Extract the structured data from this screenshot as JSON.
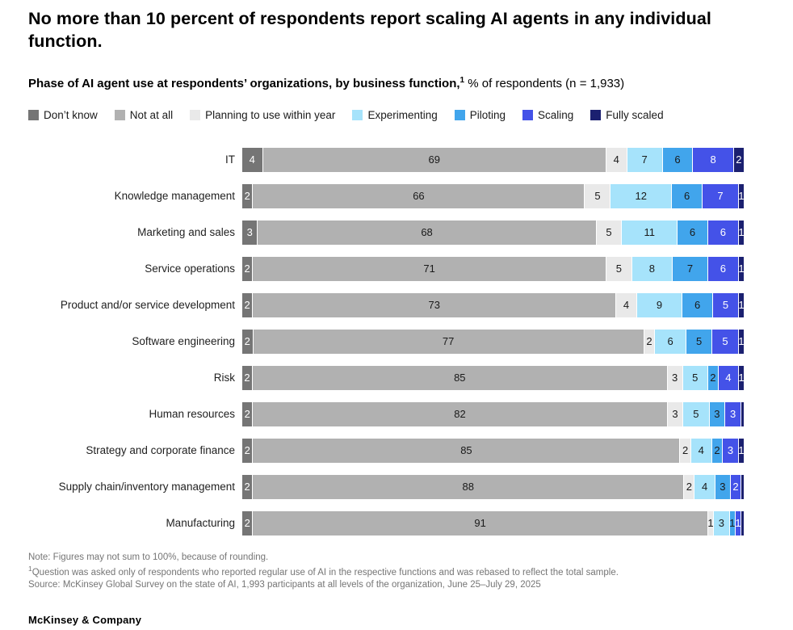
{
  "page": {
    "title": "No more than 10 percent of respondents report scaling AI agents in any individual function.",
    "subtitle_bold": "Phase of AI agent use at respondents’ organizations, by business function,",
    "subtitle_sup": "1",
    "subtitle_rest": " % of respondents (n = 1,933)",
    "brand": "McKinsey & Company"
  },
  "notes": {
    "note": "Note: Figures may not sum to 100%, because of rounding.",
    "footnote_sup": "1",
    "footnote": "Question was asked only of respondents who reported regular use of AI in the respective functions and was rebased to reflect the total sample.",
    "source": "Source: McKinsey Global Survey on the state of AI, 1,993 participants at all levels of the organization, June 25–July 29, 2025"
  },
  "chart_data": {
    "type": "bar",
    "orientation": "horizontal",
    "stacked": true,
    "legend_position": "top",
    "value_unit": "% of respondents",
    "categories": [
      "IT",
      "Knowledge management",
      "Marketing and sales",
      "Service operations",
      "Product and/or service development",
      "Software engineering",
      "Risk",
      "Human resources",
      "Strategy and corporate finance",
      "Supply chain/inventory management",
      "Manufacturing"
    ],
    "series": [
      {
        "name": "Don’t know",
        "color": "#757575",
        "text_color": "#ffffff",
        "values": [
          4,
          2,
          3,
          2,
          2,
          2,
          2,
          2,
          2,
          2,
          2
        ]
      },
      {
        "name": "Not at all",
        "color": "#b1b1b1",
        "text_color": "#1a1a1a",
        "values": [
          69,
          66,
          68,
          71,
          73,
          77,
          85,
          82,
          85,
          88,
          91
        ]
      },
      {
        "name": "Planning to use within year",
        "color": "#e9e9e9",
        "text_color": "#1a1a1a",
        "values": [
          4,
          5,
          5,
          5,
          4,
          2,
          3,
          3,
          2,
          2,
          1
        ]
      },
      {
        "name": "Experimenting",
        "color": "#a6e3fb",
        "text_color": "#1a1a1a",
        "values": [
          7,
          12,
          11,
          8,
          9,
          6,
          5,
          5,
          4,
          4,
          3
        ]
      },
      {
        "name": "Piloting",
        "color": "#41a5ec",
        "text_color": "#1a1a1a",
        "values": [
          6,
          6,
          6,
          7,
          6,
          5,
          2,
          3,
          2,
          3,
          1
        ]
      },
      {
        "name": "Scaling",
        "color": "#4452e8",
        "text_color": "#ffffff",
        "values": [
          8,
          7,
          6,
          6,
          5,
          5,
          4,
          3,
          3,
          2,
          1
        ]
      },
      {
        "name": "Fully scaled",
        "color": "#1b2070",
        "text_color": "#ffffff",
        "values": [
          2,
          1,
          1,
          1,
          1,
          1,
          1,
          0,
          1,
          0,
          0
        ]
      }
    ]
  }
}
